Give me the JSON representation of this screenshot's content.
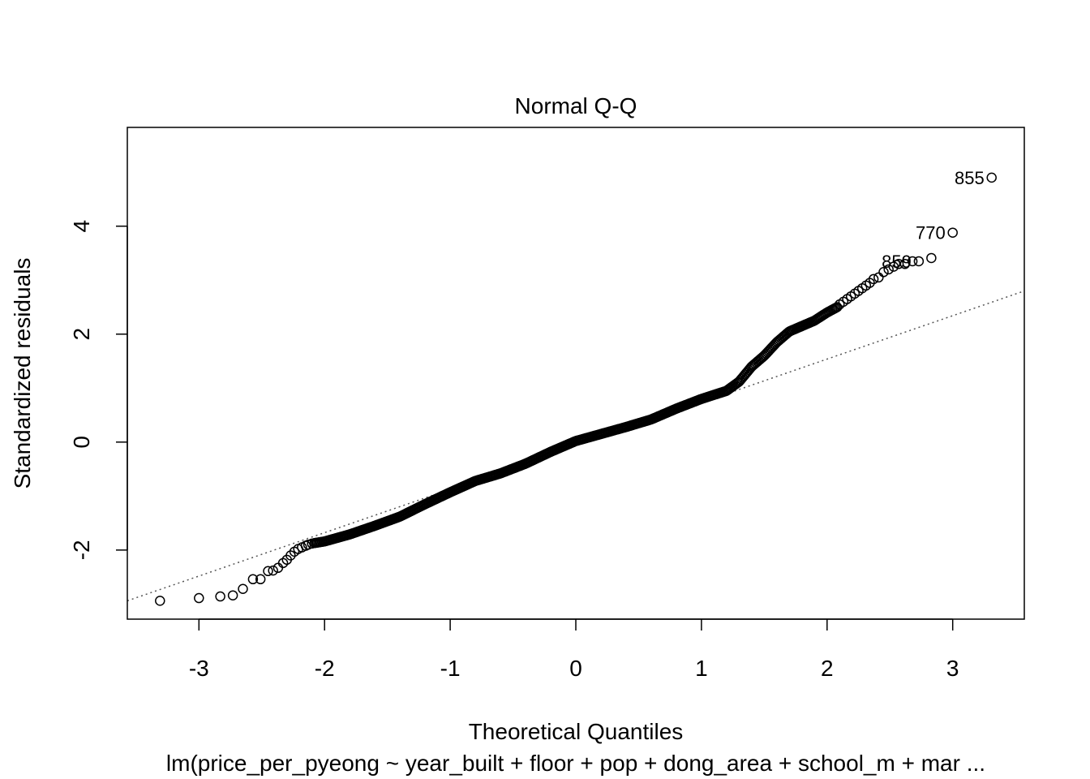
{
  "chart_data": {
    "type": "scatter",
    "title": "Normal Q-Q",
    "xlabel": "Theoretical Quantiles",
    "ylabel": "Standardized residuals",
    "subtitle": "lm(price_per_pyeong ~ year_built + floor + pop + dong_area + school_m + mar ...",
    "xlim": [
      -3.57,
      3.57
    ],
    "ylim": [
      -3.28,
      5.83
    ],
    "x_ticks": [
      -3,
      -2,
      -1,
      0,
      1,
      2,
      3
    ],
    "y_ticks": [
      -2,
      0,
      2,
      4
    ],
    "x_tick_labels": [
      "-3",
      "-2",
      "-1",
      "0",
      "1",
      "2",
      "3"
    ],
    "y_tick_labels": [
      "-2",
      "0",
      "2",
      "4"
    ],
    "reference_line": {
      "style": "dotted",
      "color": "#555555",
      "points": [
        [
          -3.57,
          -2.94
        ],
        [
          3.57,
          2.8
        ]
      ]
    },
    "point_style": {
      "shape": "open-circle",
      "color": "#000000"
    },
    "points_extreme": [
      [
        -3.31,
        -2.94
      ],
      [
        -3.0,
        -2.89
      ],
      [
        -2.83,
        -2.86
      ],
      [
        -2.73,
        -2.84
      ],
      [
        -2.65,
        -2.72
      ],
      [
        -2.57,
        -2.54
      ],
      [
        -2.51,
        -2.54
      ],
      [
        -2.45,
        -2.39
      ],
      [
        -2.41,
        -2.38
      ],
      [
        -2.37,
        -2.33
      ],
      [
        -2.33,
        -2.24
      ],
      [
        -2.3,
        -2.18
      ],
      [
        -2.27,
        -2.1
      ],
      [
        -2.24,
        -2.03
      ],
      [
        -2.21,
        -1.98
      ],
      [
        -2.18,
        -1.95
      ],
      [
        -2.15,
        -1.92
      ],
      [
        -2.13,
        -1.9
      ],
      [
        -2.1,
        -1.88
      ],
      [
        2.1,
        2.55
      ],
      [
        2.13,
        2.6
      ],
      [
        2.16,
        2.65
      ],
      [
        2.19,
        2.7
      ],
      [
        2.22,
        2.75
      ],
      [
        2.25,
        2.8
      ],
      [
        2.28,
        2.85
      ],
      [
        2.31,
        2.9
      ],
      [
        2.34,
        2.95
      ],
      [
        2.37,
        3.02
      ],
      [
        2.41,
        3.05
      ],
      [
        2.45,
        3.15
      ],
      [
        2.49,
        3.2
      ],
      [
        2.53,
        3.25
      ],
      [
        2.57,
        3.3
      ],
      [
        2.62,
        3.3
      ],
      [
        2.68,
        3.35
      ],
      [
        2.73,
        3.35
      ],
      [
        2.83,
        3.41
      ],
      [
        3.0,
        3.88
      ],
      [
        3.31,
        4.9
      ]
    ],
    "core_quantile_curve": {
      "x_range": [
        -2.08,
        2.08
      ],
      "knots": [
        [
          -2.08,
          -1.87
        ],
        [
          -2.0,
          -1.84
        ],
        [
          -1.8,
          -1.71
        ],
        [
          -1.6,
          -1.55
        ],
        [
          -1.4,
          -1.38
        ],
        [
          -1.2,
          -1.15
        ],
        [
          -1.0,
          -0.93
        ],
        [
          -0.8,
          -0.72
        ],
        [
          -0.6,
          -0.58
        ],
        [
          -0.4,
          -0.4
        ],
        [
          -0.2,
          -0.18
        ],
        [
          0.0,
          0.02
        ],
        [
          0.2,
          0.15
        ],
        [
          0.4,
          0.28
        ],
        [
          0.6,
          0.42
        ],
        [
          0.8,
          0.62
        ],
        [
          1.0,
          0.8
        ],
        [
          1.2,
          0.95
        ],
        [
          1.3,
          1.12
        ],
        [
          1.4,
          1.4
        ],
        [
          1.5,
          1.6
        ],
        [
          1.6,
          1.85
        ],
        [
          1.7,
          2.05
        ],
        [
          1.8,
          2.15
        ],
        [
          1.9,
          2.25
        ],
        [
          2.0,
          2.4
        ],
        [
          2.08,
          2.5
        ]
      ]
    },
    "labeled_points": [
      {
        "label": "855",
        "x": 3.31,
        "y": 4.9
      },
      {
        "label": "770",
        "x": 3.0,
        "y": 3.88
      },
      {
        "label": "859",
        "x": 2.73,
        "y": 3.35
      }
    ]
  }
}
